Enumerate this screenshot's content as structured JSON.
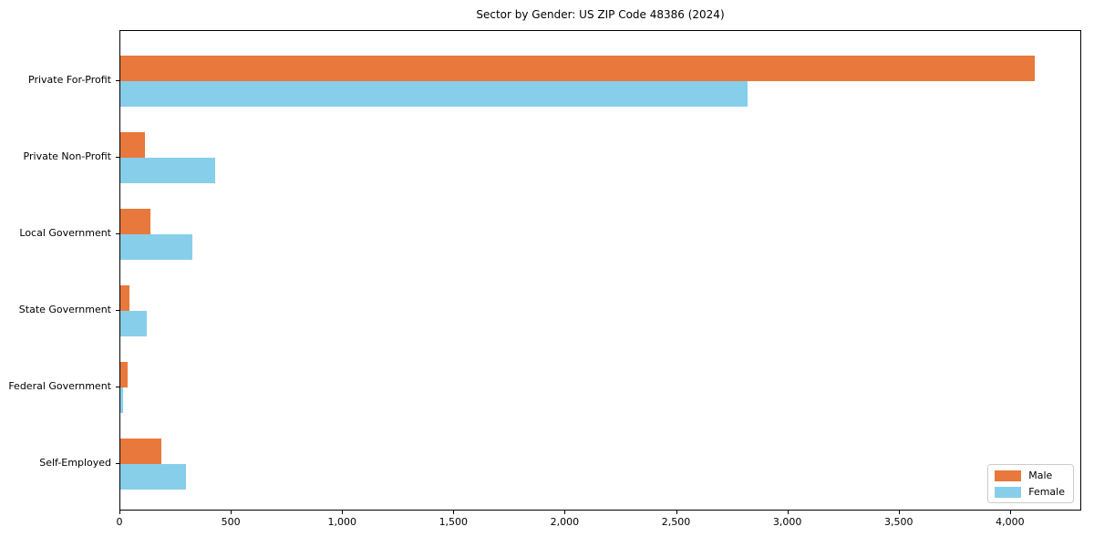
{
  "chart_data": {
    "type": "bar",
    "orientation": "horizontal",
    "title": "Sector by Gender: US ZIP Code 48386 (2024)",
    "categories": [
      "Private For-Profit",
      "Private Non-Profit",
      "Local Government",
      "State Government",
      "Federal Government",
      "Self-Employed"
    ],
    "series": [
      {
        "name": "Male",
        "color": "#e8783c",
        "values": [
          4115,
          109,
          136,
          40,
          32,
          183
        ]
      },
      {
        "name": "Female",
        "color": "#87ceeb",
        "values": [
          2824,
          425,
          323,
          119,
          12,
          296
        ]
      }
    ],
    "xlim": [
      0,
      4320
    ],
    "x_ticks": [
      0,
      500,
      1000,
      1500,
      2000,
      2500,
      3000,
      3500,
      4000
    ],
    "x_tick_labels": [
      "0",
      "500",
      "1,000",
      "1,500",
      "2,000",
      "2,500",
      "3,000",
      "3,500",
      "4,000"
    ],
    "ylabel": "",
    "xlabel": "",
    "grid": false,
    "legend_position": "lower right",
    "spine_color": "#000000",
    "background_color": "#ffffff"
  }
}
